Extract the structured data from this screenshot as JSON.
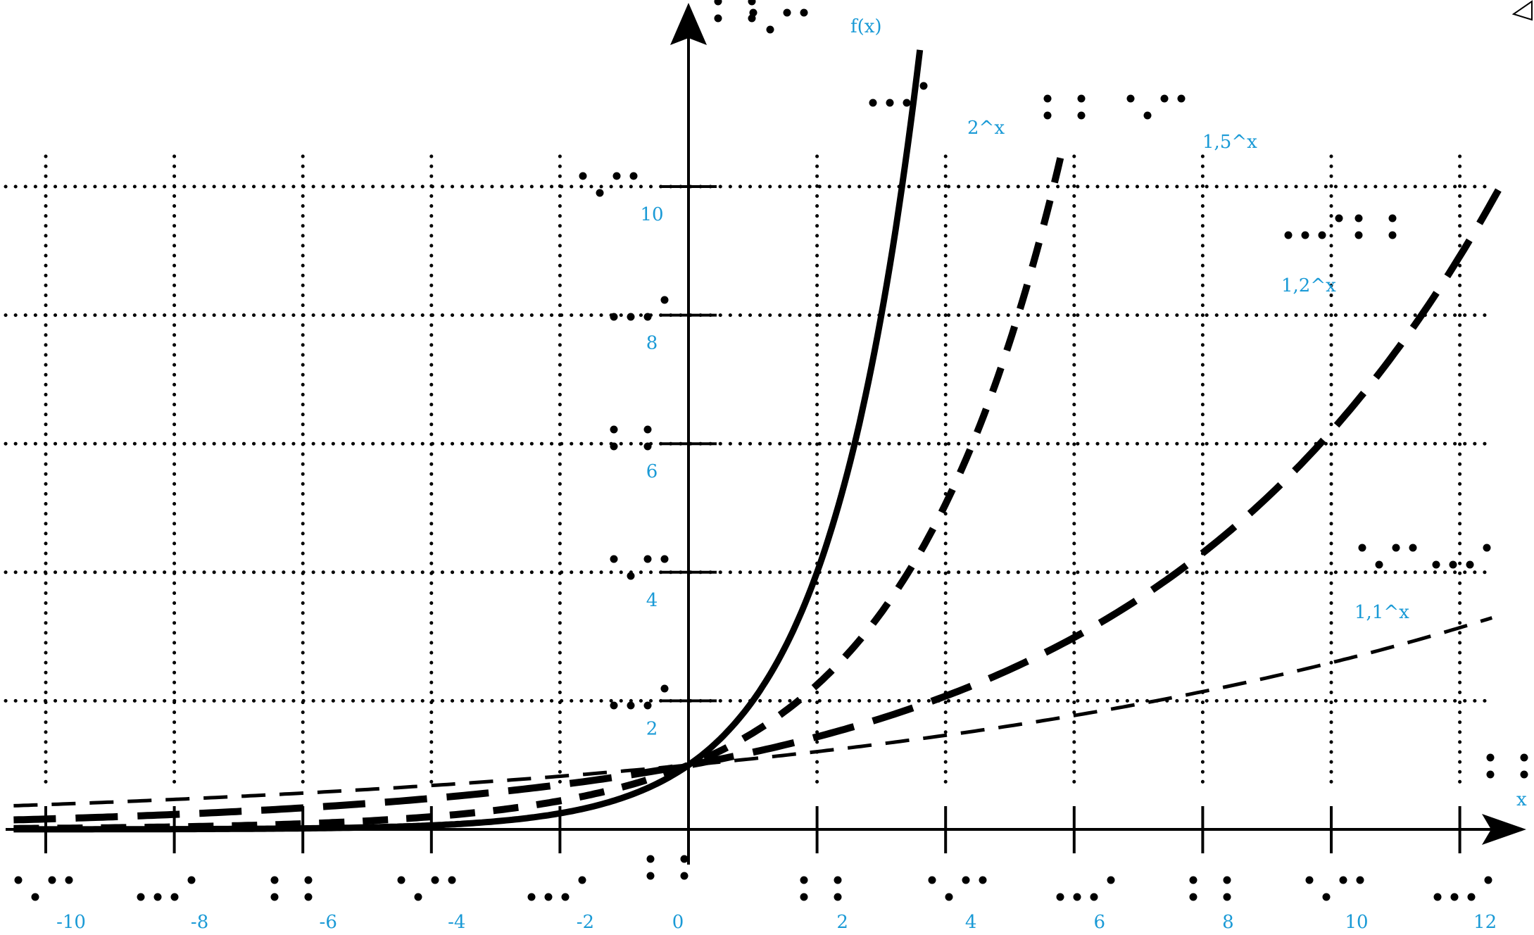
{
  "chart_data": {
    "type": "line",
    "title": "",
    "xlabel": "x",
    "ylabel": "f(x)",
    "xlim": [
      -10.5,
      12.5
    ],
    "ylim": [
      -0.4,
      12.6
    ],
    "x_ticks": [
      -10,
      -8,
      -6,
      -4,
      -2,
      0,
      2,
      4,
      6,
      8,
      10,
      12
    ],
    "x_tick_labels": [
      "-10",
      "-8",
      "-6",
      "-4",
      "-2",
      "0",
      "2",
      "4",
      "6",
      "8",
      "10",
      "12"
    ],
    "y_ticks": [
      2,
      4,
      6,
      8,
      10
    ],
    "y_tick_labels": [
      "2",
      "4",
      "6",
      "8",
      "10"
    ],
    "grid": true,
    "series": [
      {
        "name": "2^x",
        "base": 2,
        "x": [
          -10.5,
          3.6
        ],
        "style": "solid"
      },
      {
        "name": "1,5^x",
        "base": 1.5,
        "x": [
          -10.5,
          5.85
        ],
        "style": "dashed"
      },
      {
        "name": "1,2^x",
        "base": 1.2,
        "x": [
          -10.5,
          12.6
        ],
        "style": "long-dashed"
      },
      {
        "name": "1,1^x",
        "base": 1.1,
        "x": [
          -10.5,
          12.5
        ],
        "style": "thin-dashed"
      }
    ]
  }
}
